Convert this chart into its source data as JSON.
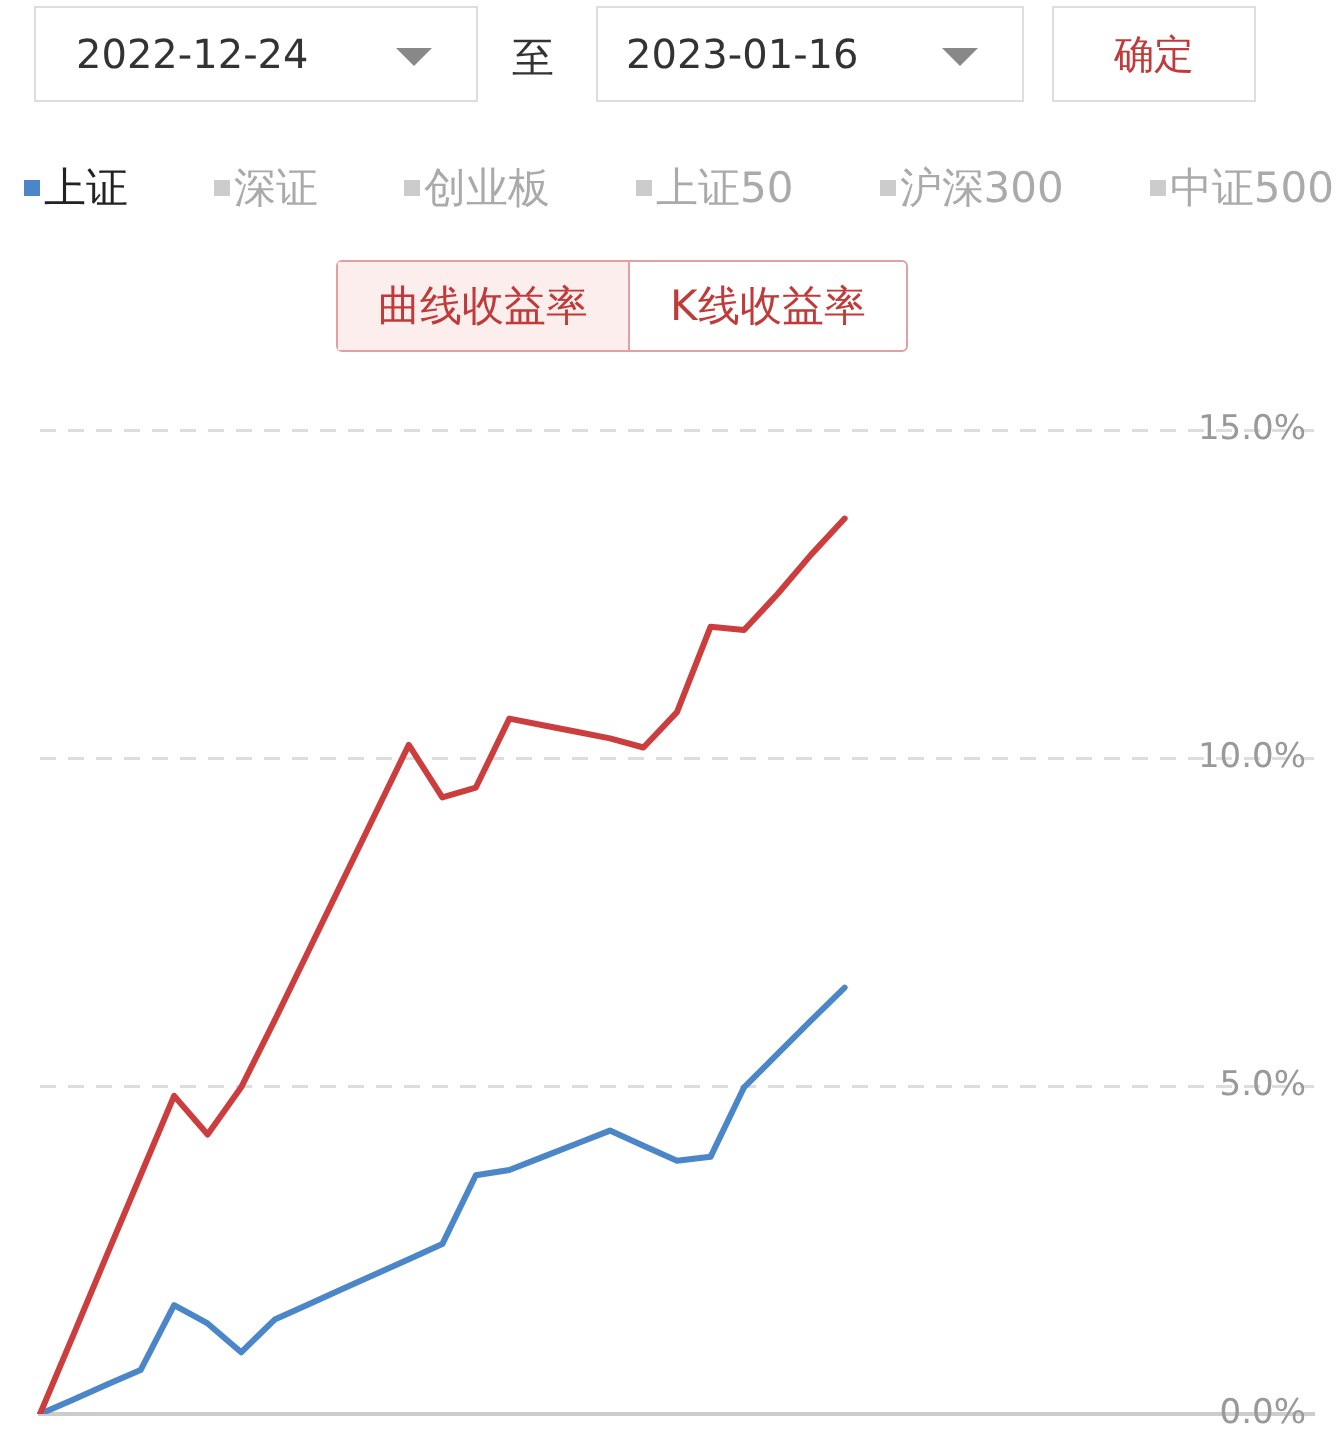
{
  "chart_data": {
    "type": "line",
    "categories": [
      null,
      null,
      null,
      null,
      null,
      null,
      null,
      null,
      null,
      null,
      null,
      null,
      null,
      null,
      null,
      null,
      null,
      null,
      null,
      null,
      null,
      null,
      null,
      null,
      null,
      null,
      null,
      null,
      null,
      null,
      null,
      null,
      null,
      null,
      null,
      null,
      null,
      null,
      null
    ],
    "series": [
      {
        "color": "#cc3d3d",
        "values": [
          0,
          1.21,
          2.43,
          3.64,
          4.85,
          4.26,
          4.98,
          6.0,
          7.05,
          8.1,
          9.15,
          10.2,
          9.4,
          9.55,
          10.6,
          10.5,
          10.4,
          10.3,
          10.16,
          10.7,
          12.0,
          11.95,
          12.5,
          13.1,
          13.65,
          null,
          null,
          null,
          null,
          null,
          null,
          null,
          null,
          null,
          null,
          null,
          null,
          null,
          null
        ]
      },
      {
        "name": "上证",
        "color": "#4a86c8",
        "values": [
          0,
          0.22,
          0.45,
          0.67,
          1.66,
          1.38,
          0.94,
          1.44,
          1.67,
          1.9,
          2.13,
          2.36,
          2.59,
          3.64,
          3.72,
          3.92,
          4.12,
          4.32,
          4.09,
          3.86,
          3.92,
          4.98,
          5.49,
          6.0,
          6.5,
          null,
          null,
          null,
          null,
          null,
          null,
          null,
          null,
          null,
          null,
          null,
          null,
          null,
          null
        ]
      }
    ],
    "ylim": [
      0,
      15
    ],
    "yticks": [
      {
        "value": 0,
        "label": "0.0%"
      },
      {
        "value": 5,
        "label": "5.0%"
      },
      {
        "value": 10,
        "label": "10.0%"
      },
      {
        "value": 15,
        "label": "15.0%"
      }
    ],
    "grid": "y",
    "legend": "top left",
    "marker": "none",
    "line_style": "solid",
    "tick_labels": "y",
    "annotations": [
      "2022-12-24",
      "至",
      "2023-01-16",
      "确定",
      "深证",
      "创业板",
      "上证50",
      "沪深300",
      "中证500",
      "曲线收益率",
      "K线收益率"
    ]
  }
}
